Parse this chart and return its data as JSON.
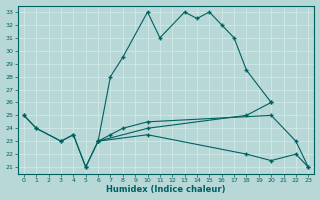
{
  "xlabel": "Humidex (Indice chaleur)",
  "line1": [
    [
      0,
      25.0
    ],
    [
      1,
      24.0
    ],
    [
      3,
      23.0
    ],
    [
      4,
      23.5
    ],
    [
      5,
      21.0
    ],
    [
      6,
      23.0
    ],
    [
      7,
      28.0
    ],
    [
      8,
      29.5
    ],
    [
      10,
      33.0
    ],
    [
      11,
      31.0
    ],
    [
      13,
      33.0
    ],
    [
      14,
      32.5
    ],
    [
      15,
      33.0
    ],
    [
      16,
      32.0
    ],
    [
      17,
      31.0
    ],
    [
      18,
      28.5
    ],
    [
      20,
      26.0
    ]
  ],
  "line2": [
    [
      0,
      25.0
    ],
    [
      1,
      24.0
    ],
    [
      3,
      23.0
    ],
    [
      4,
      23.5
    ],
    [
      5,
      21.0
    ],
    [
      6,
      23.0
    ],
    [
      7,
      23.5
    ],
    [
      8,
      24.0
    ],
    [
      10,
      24.5
    ],
    [
      20,
      25.0
    ],
    [
      22,
      23.0
    ],
    [
      23,
      21.0
    ]
  ],
  "line3": [
    [
      6,
      23.0
    ],
    [
      10,
      24.0
    ],
    [
      18,
      25.0
    ],
    [
      20,
      26.0
    ]
  ],
  "line4": [
    [
      6,
      23.0
    ],
    [
      10,
      23.5
    ],
    [
      18,
      22.0
    ],
    [
      20,
      21.5
    ],
    [
      22,
      22.0
    ],
    [
      23,
      21.0
    ]
  ],
  "ylim": [
    20.5,
    33.5
  ],
  "xlim": [
    -0.5,
    23.5
  ],
  "bg_color": "#b8d8d8",
  "line_color": "#006060",
  "grid_color": "#d0e8e8",
  "yticks": [
    21,
    22,
    23,
    24,
    25,
    26,
    27,
    28,
    29,
    30,
    31,
    32,
    33
  ],
  "xticks": [
    0,
    1,
    2,
    3,
    4,
    5,
    6,
    7,
    8,
    9,
    10,
    11,
    12,
    13,
    14,
    15,
    16,
    17,
    18,
    19,
    20,
    21,
    22,
    23
  ]
}
